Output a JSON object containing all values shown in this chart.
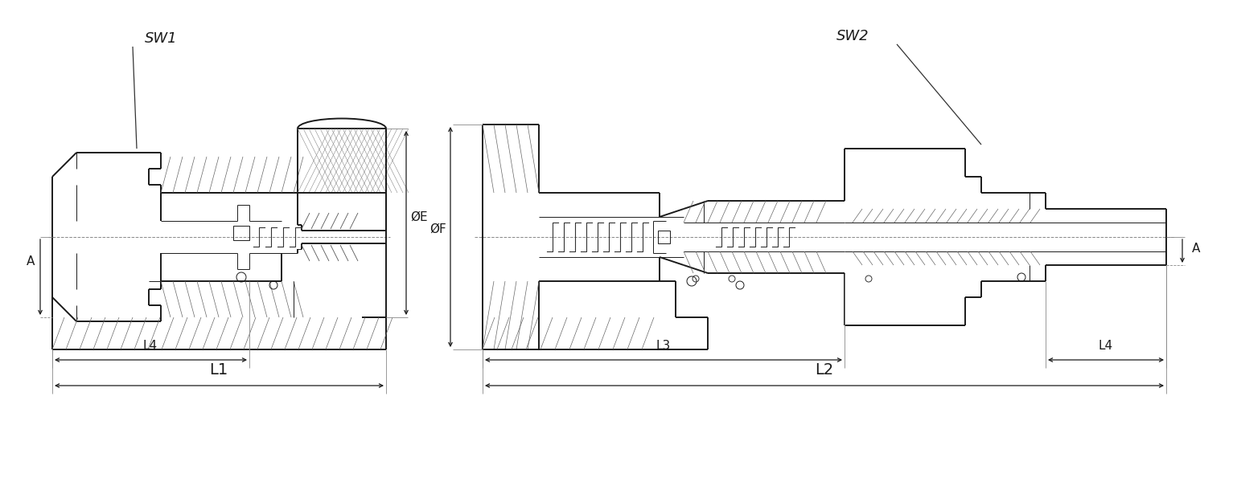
{
  "bg_color": "#ffffff",
  "line_color": "#1a1a1a",
  "sw1_label": "SW1",
  "sw2_label": "SW2",
  "label_A": "A",
  "label_E": "ØE",
  "label_F": "ØF",
  "label_L1": "L1",
  "label_L2": "L2",
  "label_L3": "L3",
  "label_L4": "L4",
  "lw_main": 1.4,
  "lw_thin": 0.7,
  "lw_dim": 0.9,
  "lw_hatch": 0.5
}
